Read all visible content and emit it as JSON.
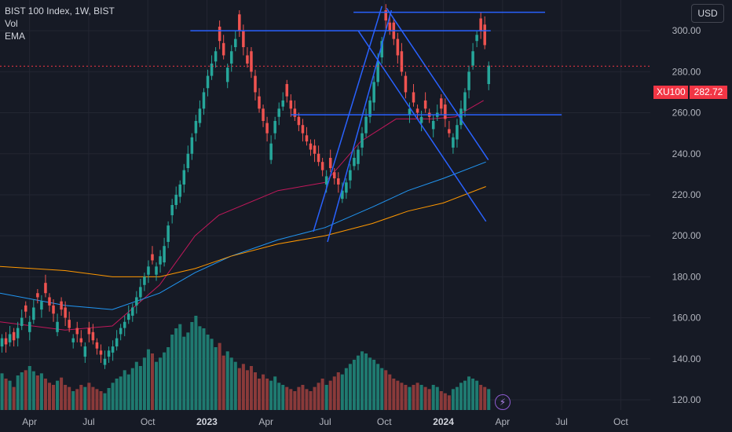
{
  "legend": {
    "title": "BIST 100 Index, 1W, BIST",
    "vol": "Vol",
    "ema": "EMA"
  },
  "currency_button": "USD",
  "price_badge": {
    "symbol": "XU100",
    "value": "282.72"
  },
  "bolt_icon_glyph": "⚡",
  "colors": {
    "background": "#161a25",
    "grid": "#232632",
    "up": "#26a69a",
    "down": "#ef5350",
    "vol_up": "#1f7a70",
    "vol_down": "#8a3a3a",
    "trendline": "#2962ff",
    "ema_pink": "#c2185b",
    "ema_blue": "#2196f3",
    "ema_orange": "#ff9800",
    "text": "#b2b5be",
    "badge": "#f23645"
  },
  "chart_data": {
    "type": "candlestick",
    "title": "BIST 100 Index, 1W, BIST",
    "ylim": [
      115,
      315
    ],
    "y_ticks": [
      "120.00",
      "140.00",
      "160.00",
      "180.00",
      "200.00",
      "220.00",
      "240.00",
      "260.00",
      "280.00",
      "300.00"
    ],
    "x_ticks": [
      {
        "label": "Apr",
        "x": 2022.25
      },
      {
        "label": "Jul",
        "x": 2022.5
      },
      {
        "label": "Oct",
        "x": 2022.75
      },
      {
        "label": "2023",
        "x": 2023.0
      },
      {
        "label": "Apr",
        "x": 2023.25
      },
      {
        "label": "Jul",
        "x": 2023.5
      },
      {
        "label": "Oct",
        "x": 2023.75
      },
      {
        "label": "2024",
        "x": 2024.0
      },
      {
        "label": "Apr",
        "x": 2024.25
      },
      {
        "label": "Jul",
        "x": 2024.5
      },
      {
        "label": "Oct",
        "x": 2024.75
      }
    ],
    "x_range": [
      2022.125,
      2024.875
    ],
    "last_price": 282.72,
    "candles_close": [
      150,
      147,
      152,
      149,
      155,
      160,
      163,
      158,
      165,
      170,
      168,
      172,
      166,
      162,
      158,
      164,
      160,
      155,
      150,
      152,
      148,
      146,
      152,
      149,
      145,
      142,
      140,
      144,
      146,
      150,
      155,
      158,
      162,
      165,
      170,
      175,
      180,
      185,
      188,
      185,
      190,
      195,
      205,
      215,
      220,
      225,
      232,
      240,
      248,
      256,
      262,
      270,
      278,
      284,
      290,
      295,
      288,
      282,
      290,
      296,
      300,
      292,
      284,
      280,
      270,
      262,
      256,
      250,
      245,
      256,
      262,
      266,
      268,
      262,
      258,
      254,
      250,
      246,
      242,
      240,
      236,
      232,
      229,
      233,
      228,
      225,
      222,
      226,
      232,
      238,
      242,
      250,
      258,
      266,
      275,
      285,
      295,
      305,
      300,
      296,
      288,
      280,
      270,
      262,
      265,
      260,
      258,
      262,
      258,
      256,
      260,
      262,
      257,
      250,
      248,
      254,
      262,
      270,
      280,
      290,
      298,
      300,
      293,
      283
    ],
    "candles_open_offset": [
      -4,
      3,
      -4,
      4,
      -5,
      -4,
      3,
      -5,
      -6,
      2,
      -4,
      5,
      4,
      4,
      -5,
      4,
      5,
      4,
      -2,
      3,
      2,
      -5,
      3,
      4,
      3,
      2,
      -3,
      -3,
      -3,
      -4,
      -3,
      -3,
      -3,
      -4,
      -4,
      -5,
      -4,
      -4,
      3,
      -4,
      -4,
      -8,
      -8,
      -5,
      -5,
      -6,
      -7,
      -7,
      -8,
      -6,
      -7,
      -8,
      -6,
      -6,
      -5,
      7,
      6,
      -7,
      -6,
      -4,
      8,
      8,
      4,
      10,
      8,
      6,
      6,
      5,
      -8,
      -6,
      -4,
      -3,
      6,
      4,
      4,
      4,
      4,
      3,
      3,
      4,
      4,
      4,
      -4,
      5,
      3,
      3,
      -4,
      -5,
      -5,
      -4,
      -7,
      -7,
      -8,
      -8,
      -10,
      -10,
      -8,
      5,
      4,
      8,
      8,
      10,
      8,
      -3,
      5,
      2,
      -3,
      4,
      2,
      -4,
      -2,
      5,
      7,
      2,
      -5,
      -7,
      -8,
      -9,
      -9,
      -7,
      -3,
      6,
      10,
      -9
    ],
    "volume": [
      35,
      30,
      28,
      22,
      33,
      36,
      38,
      42,
      37,
      33,
      35,
      30,
      26,
      24,
      28,
      31,
      24,
      22,
      18,
      20,
      24,
      22,
      26,
      22,
      20,
      18,
      16,
      21,
      26,
      30,
      32,
      38,
      34,
      40,
      46,
      42,
      50,
      58,
      54,
      46,
      50,
      55,
      60,
      72,
      78,
      82,
      70,
      74,
      84,
      90,
      80,
      78,
      72,
      68,
      60,
      64,
      52,
      56,
      50,
      46,
      40,
      44,
      38,
      42,
      36,
      30,
      34,
      30,
      28,
      32,
      26,
      24,
      22,
      20,
      18,
      22,
      24,
      20,
      18,
      22,
      26,
      30,
      24,
      28,
      32,
      36,
      34,
      40,
      44,
      48,
      52,
      56,
      54,
      50,
      48,
      44,
      40,
      38,
      34,
      30,
      28,
      26,
      24,
      22,
      24,
      26,
      24,
      22,
      20,
      24,
      22,
      18,
      16,
      14,
      20,
      22,
      26,
      28,
      32,
      30,
      28,
      24,
      22,
      20
    ],
    "ema_pink": [
      {
        "x": 2022.125,
        "y": 158
      },
      {
        "x": 2022.4,
        "y": 154
      },
      {
        "x": 2022.6,
        "y": 156
      },
      {
        "x": 2022.8,
        "y": 176
      },
      {
        "x": 2022.95,
        "y": 200
      },
      {
        "x": 2023.05,
        "y": 210
      },
      {
        "x": 2023.3,
        "y": 222
      },
      {
        "x": 2023.5,
        "y": 226
      },
      {
        "x": 2023.65,
        "y": 246
      },
      {
        "x": 2023.8,
        "y": 257
      },
      {
        "x": 2023.95,
        "y": 257
      },
      {
        "x": 2024.05,
        "y": 258
      },
      {
        "x": 2024.17,
        "y": 266
      }
    ],
    "ema_blue": [
      {
        "x": 2022.125,
        "y": 172
      },
      {
        "x": 2022.4,
        "y": 166
      },
      {
        "x": 2022.6,
        "y": 164
      },
      {
        "x": 2022.8,
        "y": 172
      },
      {
        "x": 2022.95,
        "y": 182
      },
      {
        "x": 2023.1,
        "y": 190
      },
      {
        "x": 2023.3,
        "y": 198
      },
      {
        "x": 2023.5,
        "y": 204
      },
      {
        "x": 2023.7,
        "y": 214
      },
      {
        "x": 2023.85,
        "y": 222
      },
      {
        "x": 2024.0,
        "y": 228
      },
      {
        "x": 2024.18,
        "y": 236
      }
    ],
    "ema_orange": [
      {
        "x": 2022.125,
        "y": 185
      },
      {
        "x": 2022.4,
        "y": 183
      },
      {
        "x": 2022.6,
        "y": 180
      },
      {
        "x": 2022.8,
        "y": 180
      },
      {
        "x": 2022.95,
        "y": 184
      },
      {
        "x": 2023.1,
        "y": 190
      },
      {
        "x": 2023.3,
        "y": 196
      },
      {
        "x": 2023.5,
        "y": 200
      },
      {
        "x": 2023.7,
        "y": 206
      },
      {
        "x": 2023.85,
        "y": 212
      },
      {
        "x": 2024.0,
        "y": 216
      },
      {
        "x": 2024.18,
        "y": 224
      }
    ],
    "trendlines": [
      {
        "x1": 2022.93,
        "y1": 300,
        "x2": 2024.2,
        "y2": 300
      },
      {
        "x1": 2023.62,
        "y1": 309,
        "x2": 2024.43,
        "y2": 309
      },
      {
        "x1": 2023.355,
        "y1": 259,
        "x2": 2024.5,
        "y2": 259
      },
      {
        "x1": 2023.45,
        "y1": 202,
        "x2": 2023.74,
        "y2": 312
      },
      {
        "x1": 2023.51,
        "y1": 197,
        "x2": 2023.78,
        "y2": 310
      },
      {
        "x1": 2023.64,
        "y1": 300,
        "x2": 2024.18,
        "y2": 207
      },
      {
        "x1": 2023.76,
        "y1": 311,
        "x2": 2024.19,
        "y2": 237
      }
    ]
  }
}
